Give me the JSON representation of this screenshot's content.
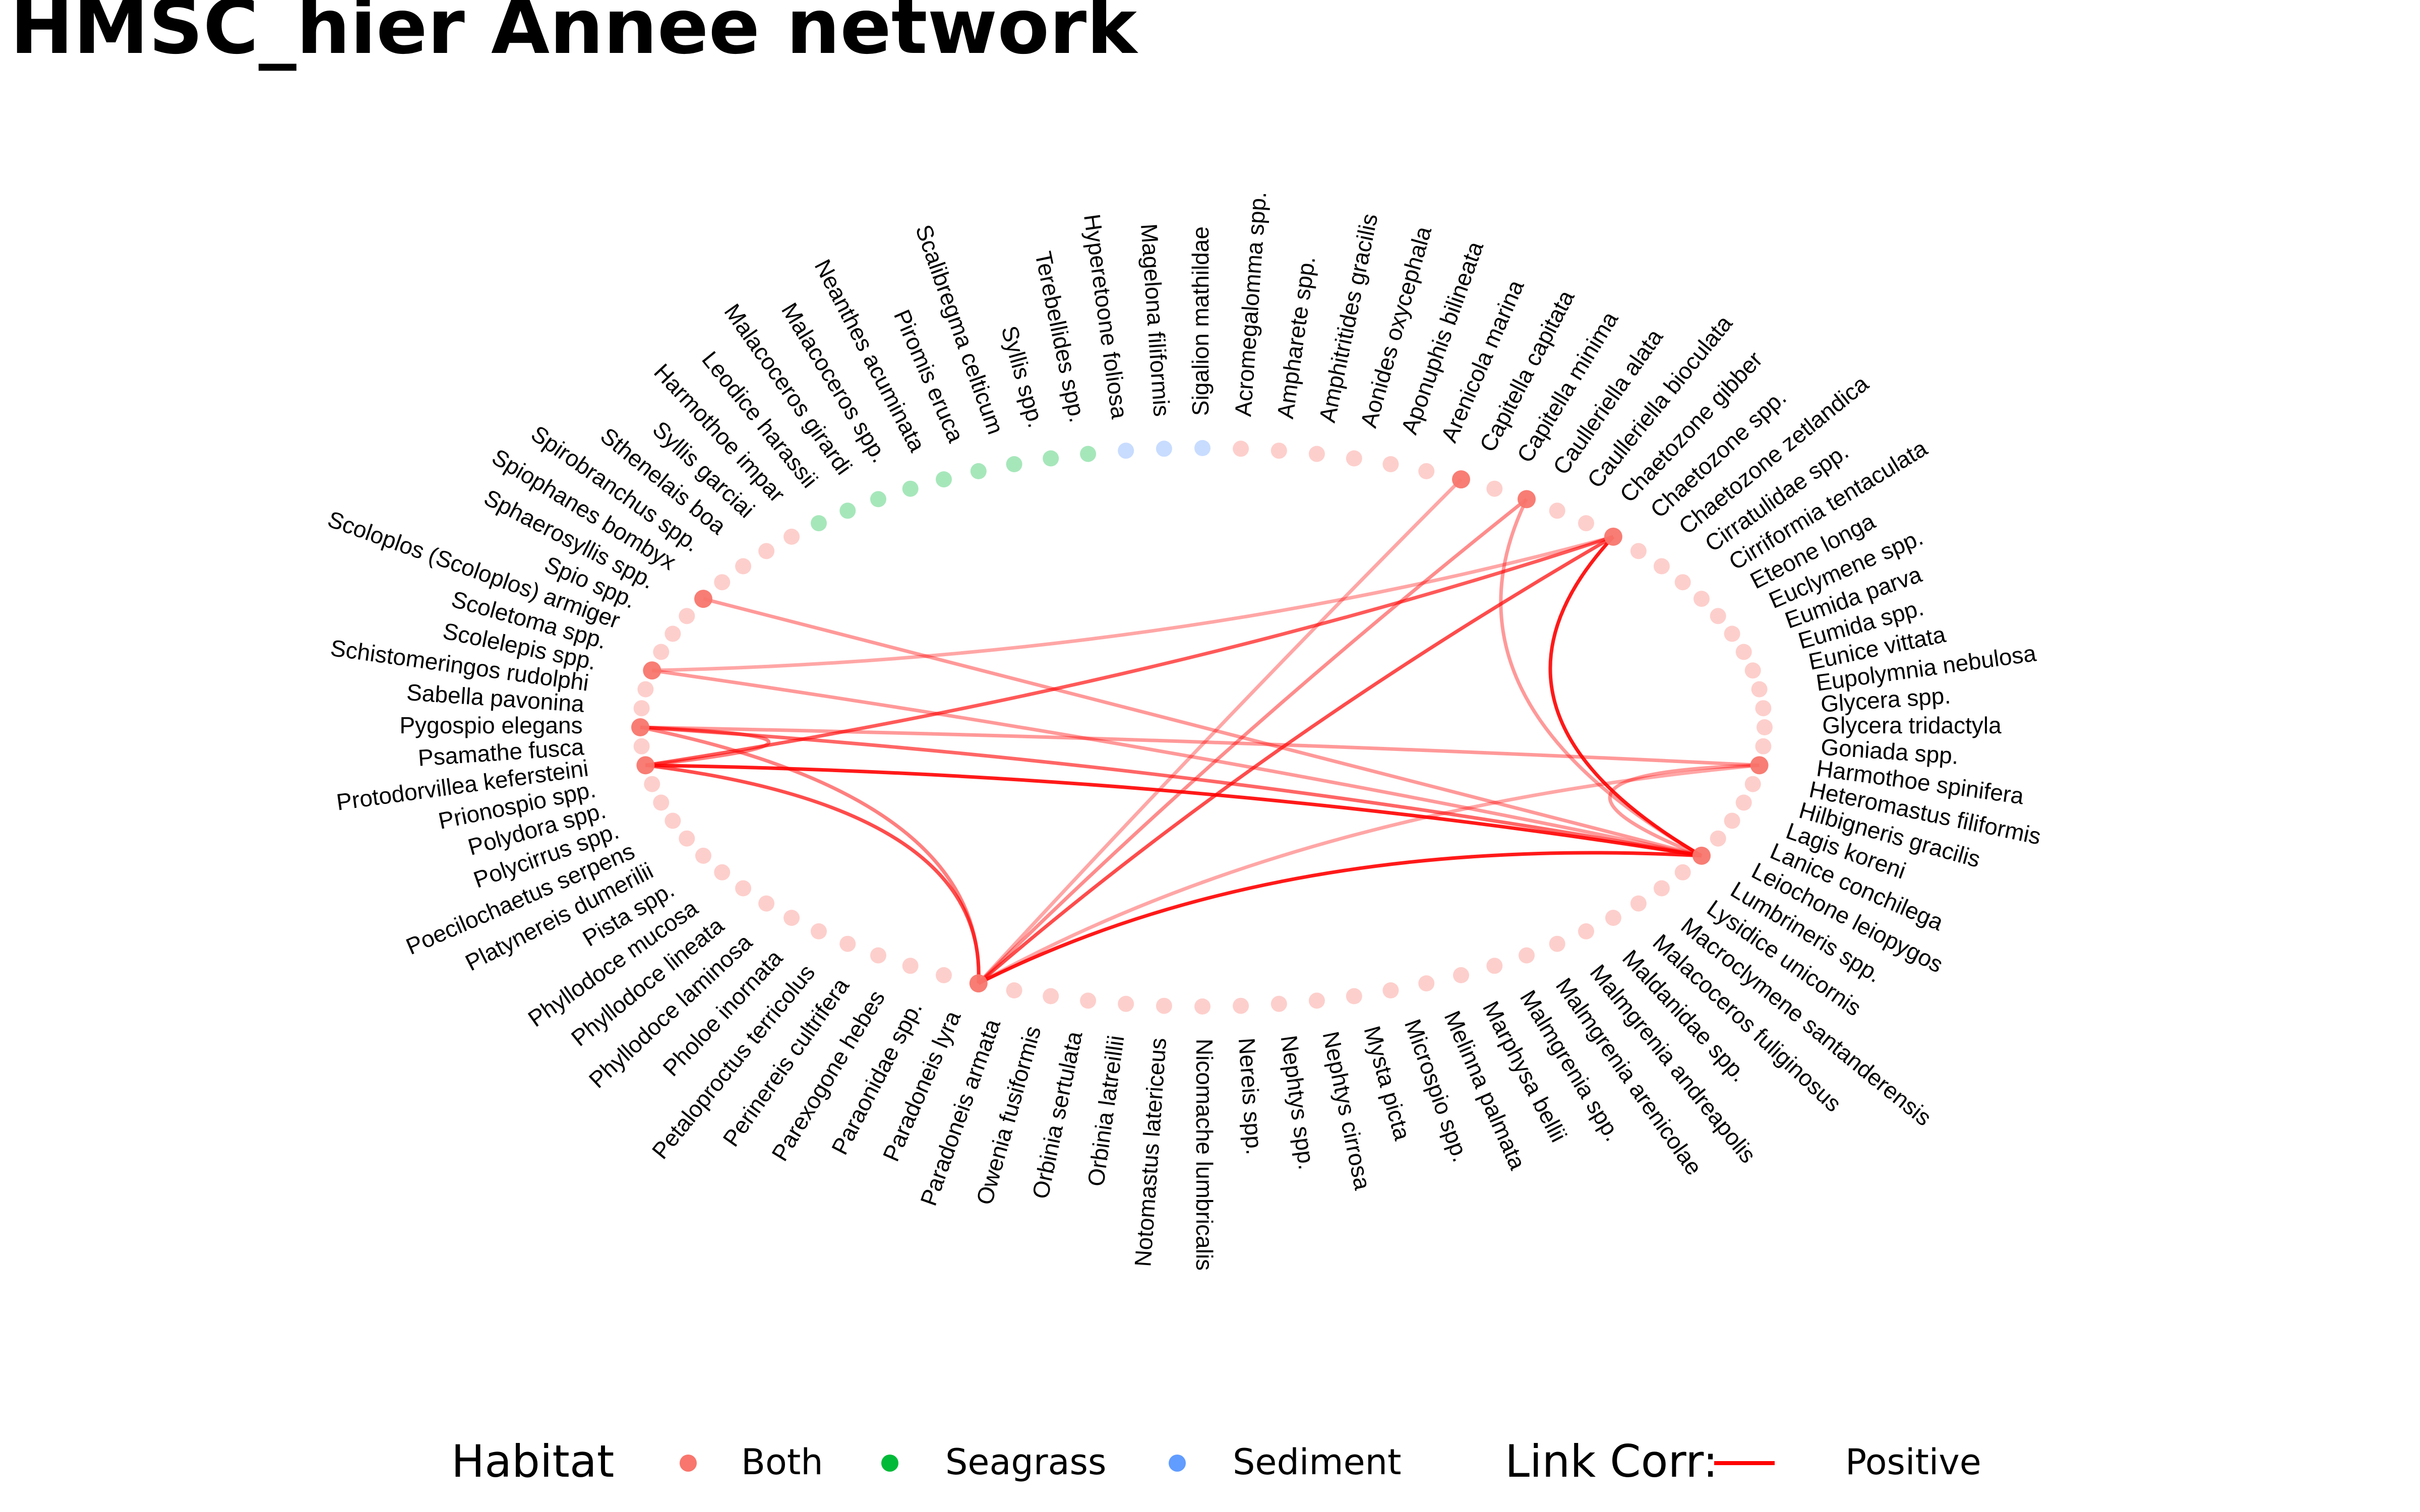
{
  "title": "HMSC_hier Annee network",
  "colors": {
    "Both": "#F8766D",
    "Seagrass": "#00BA38",
    "Sediment": "#619CFF",
    "link_positive": "#FF0000"
  },
  "legend": {
    "habitat_title": "Habitat",
    "habitat_items": [
      "Both",
      "Seagrass",
      "Sediment"
    ],
    "link_title": "Link Corr:",
    "link_items": [
      "Positive"
    ]
  },
  "species": [
    {
      "name": "Sigalion mathildae",
      "habitat": "Sediment"
    },
    {
      "name": "Acromegalomma spp.",
      "habitat": "Both"
    },
    {
      "name": "Ampharete spp.",
      "habitat": "Both"
    },
    {
      "name": "Amphitritides gracilis",
      "habitat": "Both"
    },
    {
      "name": "Aonides oxycephala",
      "habitat": "Both"
    },
    {
      "name": "Aponuphis bilineata",
      "habitat": "Both"
    },
    {
      "name": "Arenicola marina",
      "habitat": "Both"
    },
    {
      "name": "Capitella capitata",
      "habitat": "Both",
      "active": true
    },
    {
      "name": "Capitella minima",
      "habitat": "Both"
    },
    {
      "name": "Caulleriella alata",
      "habitat": "Both",
      "active": true
    },
    {
      "name": "Caulleriella bioculata",
      "habitat": "Both"
    },
    {
      "name": "Chaetozone gibber",
      "habitat": "Both"
    },
    {
      "name": "Chaetozone spp.",
      "habitat": "Both",
      "active": true
    },
    {
      "name": "Chaetozone zetlandica",
      "habitat": "Both"
    },
    {
      "name": "Cirratulidae spp.",
      "habitat": "Both"
    },
    {
      "name": "Cirriformia tentaculata",
      "habitat": "Both"
    },
    {
      "name": "Eteone longa",
      "habitat": "Both"
    },
    {
      "name": "Euclymene spp.",
      "habitat": "Both"
    },
    {
      "name": "Eumida parva",
      "habitat": "Both"
    },
    {
      "name": "Eumida spp.",
      "habitat": "Both"
    },
    {
      "name": "Eunice vittata",
      "habitat": "Both"
    },
    {
      "name": "Eupolymnia nebulosa",
      "habitat": "Both"
    },
    {
      "name": "Glycera spp.",
      "habitat": "Both"
    },
    {
      "name": "Glycera tridactyla",
      "habitat": "Both"
    },
    {
      "name": "Goniada spp.",
      "habitat": "Both"
    },
    {
      "name": "Harmothoe spinifera",
      "habitat": "Both",
      "active": true
    },
    {
      "name": "Heteromastus filiformis",
      "habitat": "Both"
    },
    {
      "name": "Hilbigneris gracilis",
      "habitat": "Both"
    },
    {
      "name": "Lagis koreni",
      "habitat": "Both"
    },
    {
      "name": "Lanice conchilega",
      "habitat": "Both"
    },
    {
      "name": "Leiochone leiopygos",
      "habitat": "Both",
      "active": true
    },
    {
      "name": "Lumbrineris spp.",
      "habitat": "Both"
    },
    {
      "name": "Lysidice unicornis",
      "habitat": "Both"
    },
    {
      "name": "Macroclymene santanderensis",
      "habitat": "Both"
    },
    {
      "name": "Malacoceros fuliginosus",
      "habitat": "Both"
    },
    {
      "name": "Maldanidae spp.",
      "habitat": "Both"
    },
    {
      "name": "Malmgrenia andreapolis",
      "habitat": "Both"
    },
    {
      "name": "Malmgrenia arenicolae",
      "habitat": "Both"
    },
    {
      "name": "Malmgrenia spp.",
      "habitat": "Both"
    },
    {
      "name": "Marphysa bellii",
      "habitat": "Both"
    },
    {
      "name": "Melinna palmata",
      "habitat": "Both"
    },
    {
      "name": "Microspio spp.",
      "habitat": "Both"
    },
    {
      "name": "Mysta picta",
      "habitat": "Both"
    },
    {
      "name": "Nephtys cirrosa",
      "habitat": "Both"
    },
    {
      "name": "Nephtys spp.",
      "habitat": "Both"
    },
    {
      "name": "Nereis spp.",
      "habitat": "Both"
    },
    {
      "name": "Nicomache lumbricalis",
      "habitat": "Both"
    },
    {
      "name": "Notomastus latericeus",
      "habitat": "Both"
    },
    {
      "name": "Orbinia latreillii",
      "habitat": "Both"
    },
    {
      "name": "Orbinia sertulata",
      "habitat": "Both"
    },
    {
      "name": "Owenia fusiformis",
      "habitat": "Both"
    },
    {
      "name": "Paradoneis armata",
      "habitat": "Both"
    },
    {
      "name": "Paradoneis lyra",
      "habitat": "Both",
      "active": true
    },
    {
      "name": "Paraonidae spp.",
      "habitat": "Both"
    },
    {
      "name": "Parexogone hebes",
      "habitat": "Both"
    },
    {
      "name": "Perinereis cultrifera",
      "habitat": "Both"
    },
    {
      "name": "Petaloproctus terricolus",
      "habitat": "Both"
    },
    {
      "name": "Pholoe inornata",
      "habitat": "Both"
    },
    {
      "name": "Phyllodoce laminosa",
      "habitat": "Both"
    },
    {
      "name": "Phyllodoce lineata",
      "habitat": "Both"
    },
    {
      "name": "Phyllodoce mucosa",
      "habitat": "Both"
    },
    {
      "name": "Pista spp.",
      "habitat": "Both"
    },
    {
      "name": "Platynereis dumerilii",
      "habitat": "Both"
    },
    {
      "name": "Poecilochaetus serpens",
      "habitat": "Both"
    },
    {
      "name": "Polycirrus spp.",
      "habitat": "Both"
    },
    {
      "name": "Polydora spp.",
      "habitat": "Both"
    },
    {
      "name": "Prionospio spp.",
      "habitat": "Both"
    },
    {
      "name": "Protodorvillea kefersteini",
      "habitat": "Both",
      "active": true
    },
    {
      "name": "Psamathe fusca",
      "habitat": "Both"
    },
    {
      "name": "Pygospio elegans",
      "habitat": "Both",
      "active": true
    },
    {
      "name": "Sabella pavonina",
      "habitat": "Both"
    },
    {
      "name": "Schistomeringos rudolphi",
      "habitat": "Both"
    },
    {
      "name": "Scolelepis spp.",
      "habitat": "Both",
      "active": true
    },
    {
      "name": "Scoletoma spp.",
      "habitat": "Both"
    },
    {
      "name": "Scoloplos (Scoloplos) armiger",
      "habitat": "Both"
    },
    {
      "name": "Spio spp.",
      "habitat": "Both"
    },
    {
      "name": "Sphaerosyllis spp.",
      "habitat": "Both",
      "active": true
    },
    {
      "name": "Spiophanes bombyx",
      "habitat": "Both"
    },
    {
      "name": "Spirobranchus spp.",
      "habitat": "Both"
    },
    {
      "name": "Sthenelais boa",
      "habitat": "Both"
    },
    {
      "name": "Syllis garciai",
      "habitat": "Both"
    },
    {
      "name": "Harmothoe impar",
      "habitat": "Seagrass"
    },
    {
      "name": "Leodice harassii",
      "habitat": "Seagrass"
    },
    {
      "name": "Malacoceros girardi",
      "habitat": "Seagrass"
    },
    {
      "name": "Malacoceros spp.",
      "habitat": "Seagrass"
    },
    {
      "name": "Neanthes acuminata",
      "habitat": "Seagrass"
    },
    {
      "name": "Piromis eruca",
      "habitat": "Seagrass"
    },
    {
      "name": "Scalibregma celticum",
      "habitat": "Seagrass"
    },
    {
      "name": "Syllis spp.",
      "habitat": "Seagrass"
    },
    {
      "name": "Terebellides spp.",
      "habitat": "Seagrass"
    },
    {
      "name": "Hyperetoone foliosa",
      "habitat": "Sediment"
    },
    {
      "name": "Magelona filiformis",
      "habitat": "Sediment"
    }
  ],
  "links": [
    {
      "from": "Leiochone leiopygos",
      "to": "Sphaerosyllis spp.",
      "corr": "Positive",
      "strength": 0.4
    },
    {
      "from": "Leiochone leiopygos",
      "to": "Scolelepis spp.",
      "corr": "Positive",
      "strength": 0.4
    },
    {
      "from": "Leiochone leiopygos",
      "to": "Pygospio elegans",
      "corr": "Positive",
      "strength": 0.6
    },
    {
      "from": "Leiochone leiopygos",
      "to": "Protodorvillea kefersteini",
      "corr": "Positive",
      "strength": 0.9
    },
    {
      "from": "Leiochone leiopygos",
      "to": "Paradoneis lyra",
      "corr": "Positive",
      "strength": 0.9
    },
    {
      "from": "Leiochone leiopygos",
      "to": "Caulleriella alata",
      "corr": "Positive",
      "strength": 0.4
    },
    {
      "from": "Leiochone leiopygos",
      "to": "Chaetozone spp.",
      "corr": "Positive",
      "strength": 0.9
    },
    {
      "from": "Leiochone leiopygos",
      "to": "Harmothoe spinifera",
      "corr": "Positive",
      "strength": 0.4
    },
    {
      "from": "Harmothoe spinifera",
      "to": "Pygospio elegans",
      "corr": "Positive",
      "strength": 0.4
    },
    {
      "from": "Harmothoe spinifera",
      "to": "Paradoneis lyra",
      "corr": "Positive",
      "strength": 0.35
    },
    {
      "from": "Protodorvillea kefersteini",
      "to": "Chaetozone spp.",
      "corr": "Positive",
      "strength": 0.65
    },
    {
      "from": "Protodorvillea kefersteini",
      "to": "Paradoneis lyra",
      "corr": "Positive",
      "strength": 0.7
    },
    {
      "from": "Protodorvillea kefersteini",
      "to": "Pygospio elegans",
      "corr": "Positive",
      "strength": 0.5
    },
    {
      "from": "Pygospio elegans",
      "to": "Paradoneis lyra",
      "corr": "Positive",
      "strength": 0.5
    },
    {
      "from": "Paradoneis lyra",
      "to": "Caulleriella alata",
      "corr": "Positive",
      "strength": 0.45
    },
    {
      "from": "Paradoneis lyra",
      "to": "Chaetozone spp.",
      "corr": "Positive",
      "strength": 0.7
    },
    {
      "from": "Paradoneis lyra",
      "to": "Capitella capitata",
      "corr": "Positive",
      "strength": 0.35
    },
    {
      "from": "Scolelepis spp.",
      "to": "Chaetozone spp.",
      "corr": "Positive",
      "strength": 0.35
    }
  ]
}
